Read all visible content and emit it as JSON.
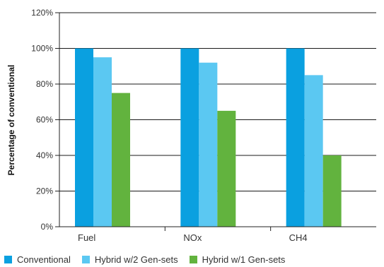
{
  "chart_data": {
    "type": "bar",
    "categories": [
      "Fuel",
      "NOx",
      "CH4"
    ],
    "series": [
      {
        "name": "Conventional",
        "color": "#0aa0e0",
        "values": [
          100,
          100,
          100
        ]
      },
      {
        "name": "Hybrid w/2 Gen-sets",
        "color": "#5bc8f2",
        "values": [
          95,
          92,
          85
        ]
      },
      {
        "name": "Hybrid w/1 Gen-sets",
        "color": "#62b33e",
        "values": [
          75,
          65,
          40
        ]
      }
    ],
    "ylabel": "Percentage of conventional",
    "ylim": [
      0,
      120
    ],
    "yticks": [
      0,
      20,
      40,
      60,
      80,
      100,
      120
    ],
    "ytick_labels": [
      "0%",
      "20%",
      "40%",
      "60%",
      "80%",
      "100%",
      "120%"
    ],
    "grid": "horizontal",
    "legend": "bottom"
  }
}
